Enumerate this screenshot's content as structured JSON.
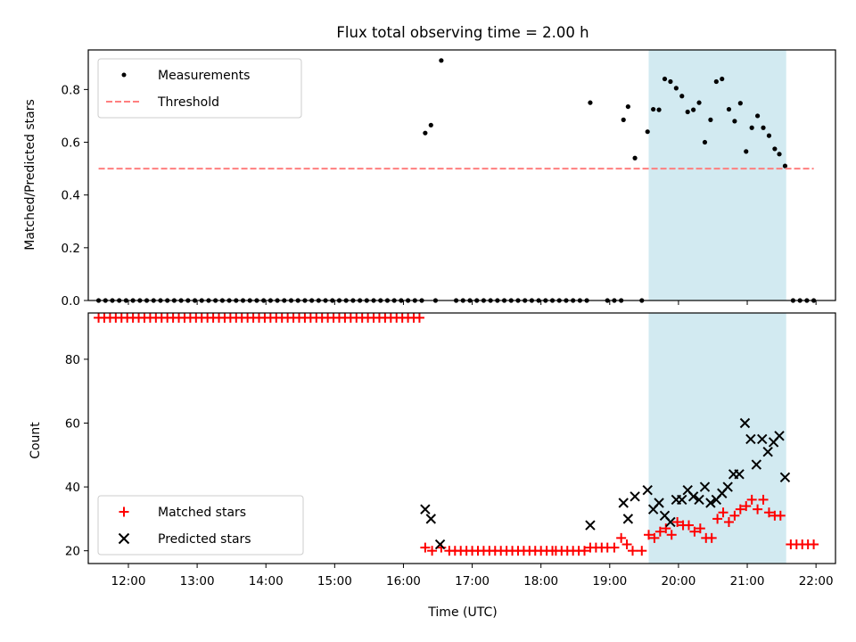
{
  "chart_data": [
    {
      "type": "scatter",
      "title": "Flux total observing time = 2.00 h",
      "xlabel": "",
      "ylabel": "Matched/Predicted stars",
      "xlim": [
        "11:25",
        "22:17"
      ],
      "ylim": [
        0,
        0.95
      ],
      "yticks": [
        0.0,
        0.2,
        0.4,
        0.6,
        0.8
      ],
      "ytick_labels": [
        "0.0",
        "0.2",
        "0.4",
        "0.6",
        "0.8"
      ],
      "highlight_span": {
        "from": "19:34",
        "to": "21:34",
        "color": "#add8e6"
      },
      "legend": {
        "placement": "upper-left",
        "entries": [
          "Measurements",
          "Threshold"
        ]
      },
      "series": [
        {
          "name": "Measurements",
          "marker": "dot",
          "color": "#000000",
          "zero_times": [
            "11:34",
            "11:40",
            "11:46",
            "11:52",
            "11:58",
            "12:04",
            "12:10",
            "12:16",
            "12:22",
            "12:28",
            "12:34",
            "12:40",
            "12:46",
            "12:52",
            "12:58",
            "13:04",
            "13:10",
            "13:16",
            "13:22",
            "13:28",
            "13:34",
            "13:40",
            "13:46",
            "13:52",
            "13:58",
            "14:04",
            "14:10",
            "14:16",
            "14:22",
            "14:28",
            "14:34",
            "14:40",
            "14:46",
            "14:52",
            "14:58",
            "15:04",
            "15:10",
            "15:16",
            "15:22",
            "15:28",
            "15:34",
            "15:40",
            "15:46",
            "15:52",
            "15:58",
            "16:04",
            "16:10",
            "16:16",
            "16:28",
            "16:46",
            "16:52",
            "16:58",
            "17:04",
            "17:10",
            "17:16",
            "17:22",
            "17:28",
            "17:34",
            "17:40",
            "17:46",
            "17:52",
            "17:58",
            "18:04",
            "18:10",
            "18:16",
            "18:22",
            "18:28",
            "18:34",
            "18:40",
            "18:58",
            "19:04",
            "19:10",
            "19:28",
            "21:40",
            "21:46",
            "21:52",
            "21:58"
          ],
          "points": [
            {
              "x": "16:19",
              "y": 0.635
            },
            {
              "x": "16:24",
              "y": 0.665
            },
            {
              "x": "16:33",
              "y": 0.91
            },
            {
              "x": "18:43",
              "y": 0.75
            },
            {
              "x": "19:12",
              "y": 0.685
            },
            {
              "x": "19:16",
              "y": 0.735
            },
            {
              "x": "19:22",
              "y": 0.54
            },
            {
              "x": "19:33",
              "y": 0.64
            },
            {
              "x": "19:38",
              "y": 0.725
            },
            {
              "x": "19:43",
              "y": 0.723
            },
            {
              "x": "19:48",
              "y": 0.84
            },
            {
              "x": "19:53",
              "y": 0.83
            },
            {
              "x": "19:58",
              "y": 0.805
            },
            {
              "x": "20:03",
              "y": 0.775
            },
            {
              "x": "20:08",
              "y": 0.715
            },
            {
              "x": "20:13",
              "y": 0.723
            },
            {
              "x": "20:18",
              "y": 0.75
            },
            {
              "x": "20:23",
              "y": 0.6
            },
            {
              "x": "20:28",
              "y": 0.685
            },
            {
              "x": "20:33",
              "y": 0.83
            },
            {
              "x": "20:38",
              "y": 0.84
            },
            {
              "x": "20:44",
              "y": 0.725
            },
            {
              "x": "20:49",
              "y": 0.68
            },
            {
              "x": "20:54",
              "y": 0.748
            },
            {
              "x": "20:59",
              "y": 0.565
            },
            {
              "x": "21:04",
              "y": 0.655
            },
            {
              "x": "21:09",
              "y": 0.7
            },
            {
              "x": "21:14",
              "y": 0.655
            },
            {
              "x": "21:19",
              "y": 0.625
            },
            {
              "x": "21:24",
              "y": 0.575
            },
            {
              "x": "21:28",
              "y": 0.555
            },
            {
              "x": "21:33",
              "y": 0.51
            }
          ]
        },
        {
          "name": "Threshold",
          "type": "line",
          "style": "dashed",
          "color": "#ff7f7f",
          "x": [
            "11:34",
            "21:58"
          ],
          "y": [
            0.5,
            0.5
          ]
        }
      ]
    },
    {
      "type": "scatter",
      "title": "",
      "xlabel": "Time (UTC)",
      "ylabel": "Count",
      "xlim": [
        "11:25",
        "22:17"
      ],
      "ylim": [
        16,
        94.5
      ],
      "yticks": [
        20,
        40,
        60,
        80
      ],
      "ytick_labels": [
        "20",
        "40",
        "60",
        "80"
      ],
      "xticks": [
        "12:00",
        "13:00",
        "14:00",
        "15:00",
        "16:00",
        "17:00",
        "18:00",
        "19:00",
        "20:00",
        "21:00",
        "22:00"
      ],
      "highlight_span": {
        "from": "19:34",
        "to": "21:34",
        "color": "#add8e6"
      },
      "legend": {
        "placement": "lower-left",
        "entries": [
          "Matched stars",
          "Predicted stars"
        ]
      },
      "series": [
        {
          "name": "Matched stars",
          "marker": "plus",
          "color": "#ff0000",
          "constant_runs": [
            {
              "from": "11:34",
              "to": "16:16",
              "step_min": 5,
              "y": 93
            },
            {
              "from": "16:40",
              "to": "18:10",
              "step_min": 5,
              "y": 20
            },
            {
              "from": "18:13",
              "to": "18:38",
              "step_min": 5,
              "y": 20
            }
          ],
          "points": [
            {
              "x": "16:19",
              "y": 21
            },
            {
              "x": "16:25",
              "y": 20
            },
            {
              "x": "16:33",
              "y": 21
            },
            {
              "x": "18:43",
              "y": 21
            },
            {
              "x": "18:48",
              "y": 21
            },
            {
              "x": "18:53",
              "y": 21
            },
            {
              "x": "18:58",
              "y": 21
            },
            {
              "x": "19:04",
              "y": 21
            },
            {
              "x": "19:10",
              "y": 24
            },
            {
              "x": "19:15",
              "y": 22
            },
            {
              "x": "19:20",
              "y": 20
            },
            {
              "x": "19:28",
              "y": 20
            },
            {
              "x": "19:34",
              "y": 25
            },
            {
              "x": "19:39",
              "y": 24
            },
            {
              "x": "19:44",
              "y": 26
            },
            {
              "x": "19:49",
              "y": 27
            },
            {
              "x": "19:54",
              "y": 25
            },
            {
              "x": "19:59",
              "y": 29
            },
            {
              "x": "20:04",
              "y": 28
            },
            {
              "x": "20:09",
              "y": 28
            },
            {
              "x": "20:14",
              "y": 26
            },
            {
              "x": "20:19",
              "y": 27
            },
            {
              "x": "20:24",
              "y": 24
            },
            {
              "x": "20:29",
              "y": 24
            },
            {
              "x": "20:34",
              "y": 30
            },
            {
              "x": "20:39",
              "y": 32
            },
            {
              "x": "20:44",
              "y": 29
            },
            {
              "x": "20:49",
              "y": 31
            },
            {
              "x": "20:54",
              "y": 33
            },
            {
              "x": "20:59",
              "y": 34
            },
            {
              "x": "21:04",
              "y": 36
            },
            {
              "x": "21:09",
              "y": 33
            },
            {
              "x": "21:14",
              "y": 36
            },
            {
              "x": "21:19",
              "y": 32
            },
            {
              "x": "21:24",
              "y": 31
            },
            {
              "x": "21:29",
              "y": 31
            },
            {
              "x": "21:38",
              "y": 22
            },
            {
              "x": "21:43",
              "y": 22
            },
            {
              "x": "21:48",
              "y": 22
            },
            {
              "x": "21:53",
              "y": 22
            },
            {
              "x": "21:58",
              "y": 22
            }
          ]
        },
        {
          "name": "Predicted stars",
          "marker": "x",
          "color": "#000000",
          "points": [
            {
              "x": "16:19",
              "y": 33
            },
            {
              "x": "16:24",
              "y": 30
            },
            {
              "x": "16:32",
              "y": 22
            },
            {
              "x": "18:43",
              "y": 28
            },
            {
              "x": "19:12",
              "y": 35
            },
            {
              "x": "19:16",
              "y": 30
            },
            {
              "x": "19:22",
              "y": 37
            },
            {
              "x": "19:33",
              "y": 39
            },
            {
              "x": "19:38",
              "y": 33
            },
            {
              "x": "19:43",
              "y": 35
            },
            {
              "x": "19:48",
              "y": 31
            },
            {
              "x": "19:53",
              "y": 29
            },
            {
              "x": "19:58",
              "y": 36
            },
            {
              "x": "20:03",
              "y": 36
            },
            {
              "x": "20:08",
              "y": 39
            },
            {
              "x": "20:13",
              "y": 37
            },
            {
              "x": "20:18",
              "y": 36
            },
            {
              "x": "20:23",
              "y": 40
            },
            {
              "x": "20:28",
              "y": 35
            },
            {
              "x": "20:33",
              "y": 36
            },
            {
              "x": "20:38",
              "y": 38
            },
            {
              "x": "20:43",
              "y": 40
            },
            {
              "x": "20:48",
              "y": 44
            },
            {
              "x": "20:53",
              "y": 44
            },
            {
              "x": "20:58",
              "y": 60
            },
            {
              "x": "21:03",
              "y": 55
            },
            {
              "x": "21:08",
              "y": 47
            },
            {
              "x": "21:13",
              "y": 55
            },
            {
              "x": "21:18",
              "y": 51
            },
            {
              "x": "21:23",
              "y": 54
            },
            {
              "x": "21:28",
              "y": 56
            },
            {
              "x": "21:33",
              "y": 43
            }
          ]
        }
      ]
    }
  ]
}
